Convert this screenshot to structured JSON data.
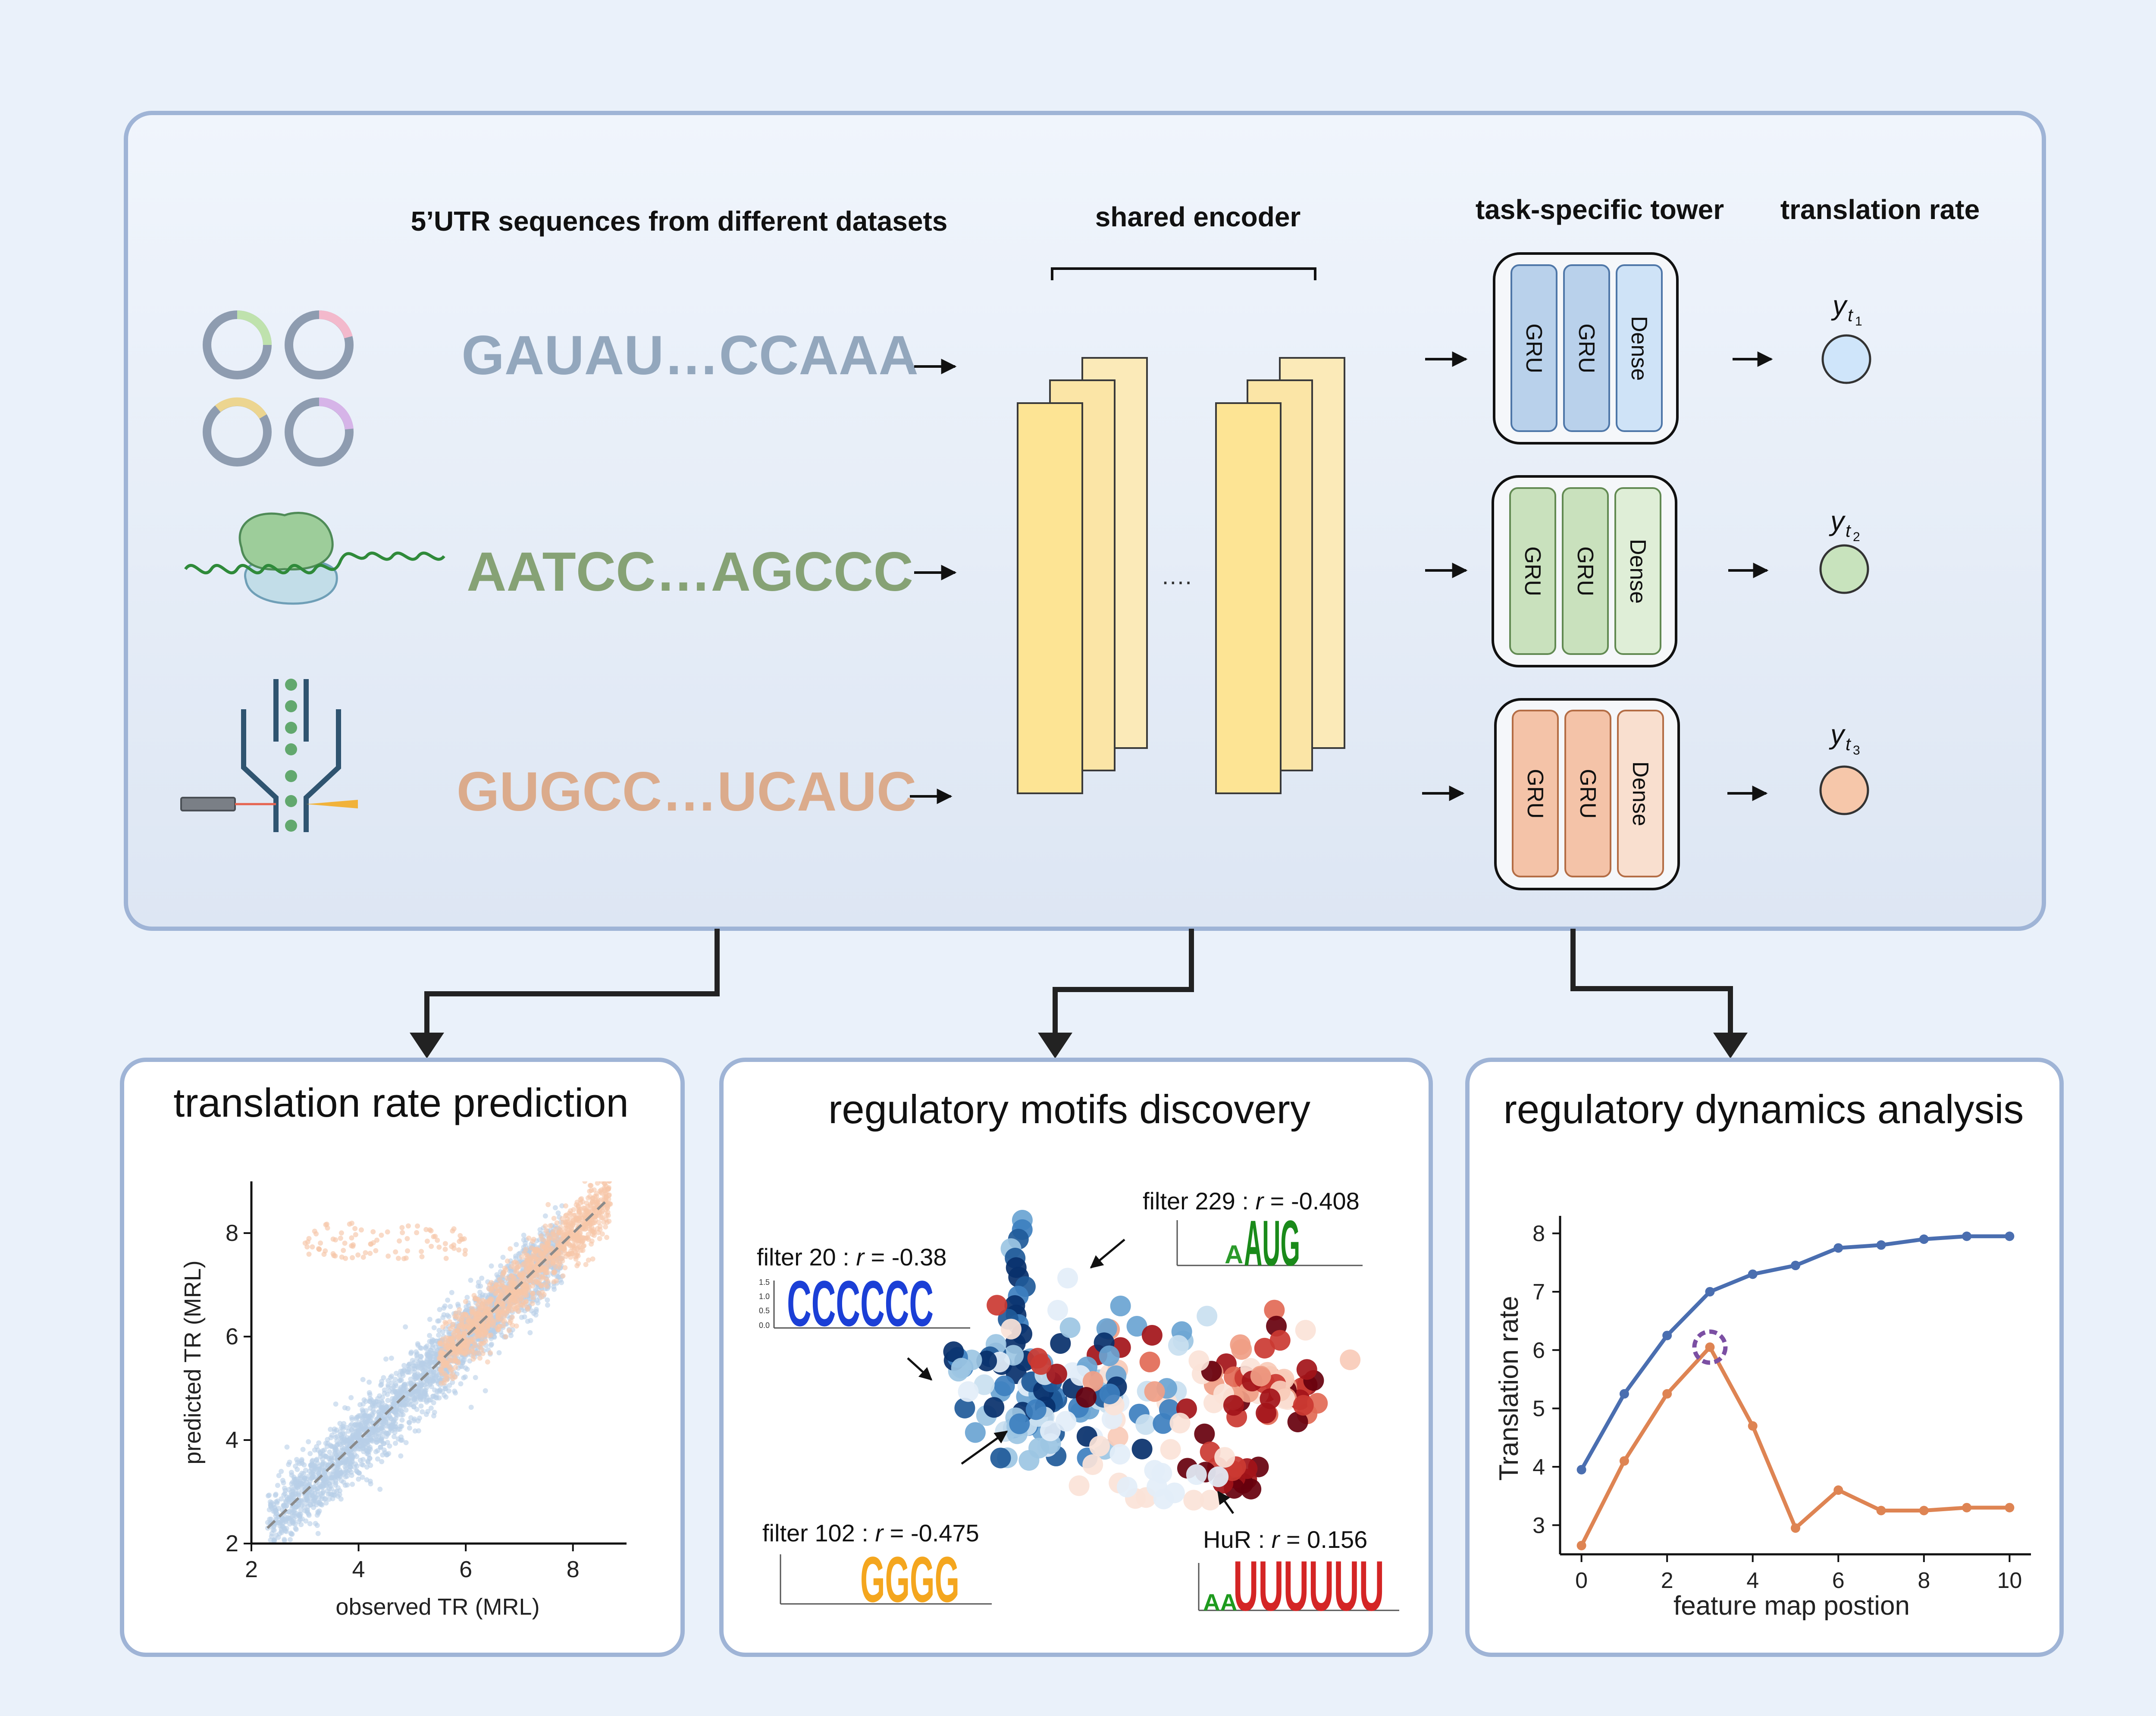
{
  "top_panel": {
    "headers": {
      "sequences": "5’UTR sequences from different datasets",
      "encoder": "shared encoder",
      "tower": "task-specific tower",
      "output": "translation rate"
    },
    "sequences": [
      {
        "text": "GAUAU…CCAAA",
        "color": "#93a7bd"
      },
      {
        "text": "AATCC…AGCCC",
        "color": "#86a275"
      },
      {
        "text": "GUGCC…UCAUC",
        "color": "#dbab8c"
      }
    ],
    "encoder_ellipsis": "….",
    "towers": [
      {
        "layers": [
          "GRU",
          "GRU",
          "Dense"
        ],
        "fill": "#b9d1eb",
        "dense_fill": "#cfe3f7",
        "stroke": "#4f77a8",
        "output_var": "y",
        "output_sub": "t",
        "output_subsub": "1",
        "output_fill": "#cfe5fa"
      },
      {
        "layers": [
          "GRU",
          "GRU",
          "Dense"
        ],
        "fill": "#c9e1bd",
        "dense_fill": "#dfeed7",
        "stroke": "#628a52",
        "output_var": "y",
        "output_sub": "t",
        "output_subsub": "2",
        "output_fill": "#c8e3bd"
      },
      {
        "layers": [
          "GRU",
          "GRU",
          "Dense"
        ],
        "fill": "#f4c3a8",
        "dense_fill": "#f9dfcf",
        "stroke": "#b46d45",
        "output_var": "y",
        "output_sub": "t",
        "output_subsub": "3",
        "output_fill": "#f6c7aa"
      }
    ]
  },
  "panels": {
    "prediction": {
      "title": "translation rate prediction",
      "xlabel": "observed TR (MRL)",
      "ylabel": "predicted TR (MRL)"
    },
    "motifs": {
      "title": "regulatory motifs discovery",
      "annotations": [
        {
          "prefix": "filter 20 : ",
          "r": "r",
          "eq": " =  -0.38",
          "logo": "CCCCCC"
        },
        {
          "prefix": "filter 229 : ",
          "r": "r",
          "eq": " =  -0.408",
          "logo": "AUG"
        },
        {
          "prefix": "filter 102 : ",
          "r": "r",
          "eq": " =  -0.475",
          "logo": "GGGG"
        },
        {
          "prefix": "HuR : ",
          "r": "r",
          "eq": " = 0.156",
          "logo": "UUUUUU"
        }
      ],
      "logo_ticks": [
        "1.5",
        "1.0",
        "0.5",
        "0.0"
      ]
    },
    "dynamics": {
      "title": "regulatory dynamics analysis",
      "xlabel": "feature map postion",
      "ylabel": "Translation rate"
    }
  },
  "chart_data": [
    {
      "type": "scatter",
      "title": "translation rate prediction",
      "xlabel": "observed TR (MRL)",
      "ylabel": "predicted TR (MRL)",
      "xlim": [
        2,
        9
      ],
      "ylim": [
        2,
        9
      ],
      "xticks": [
        2,
        4,
        6,
        8
      ],
      "yticks": [
        2,
        4,
        6,
        8
      ],
      "series": [],
      "reference_line": {
        "from": [
          2.3,
          2.3
        ],
        "to": [
          8.6,
          8.6
        ],
        "style": "dashed"
      },
      "colors": {
        "dataset_a": "#b7cfe8",
        "dataset_b": "#f6c6a9",
        "reference": "#8a8a8a"
      }
    },
    {
      "type": "line",
      "title": "regulatory dynamics analysis",
      "xlabel": "feature map postion",
      "ylabel": "Translation rate",
      "xlim": [
        -0.5,
        10.5
      ],
      "ylim": [
        2.5,
        8.3
      ],
      "xticks": [
        0,
        2,
        4,
        6,
        8,
        10
      ],
      "yticks": [
        3,
        4,
        5,
        6,
        7,
        8
      ],
      "x": [
        0,
        1,
        2,
        3,
        4,
        5,
        6,
        7,
        8,
        9,
        10
      ],
      "series": [
        {
          "values": [
            3.95,
            5.25,
            6.25,
            7.0,
            7.3,
            7.45,
            7.75,
            7.8,
            7.9,
            7.95,
            7.95
          ],
          "color": "#4a6eb0"
        },
        {
          "values": [
            2.65,
            4.1,
            5.25,
            6.05,
            4.7,
            2.95,
            3.6,
            3.25,
            3.25,
            3.3,
            3.3
          ],
          "color": "#de8453"
        }
      ],
      "highlight": {
        "x": 3,
        "y": 6.05,
        "color": "#7b4fa3"
      }
    }
  ]
}
